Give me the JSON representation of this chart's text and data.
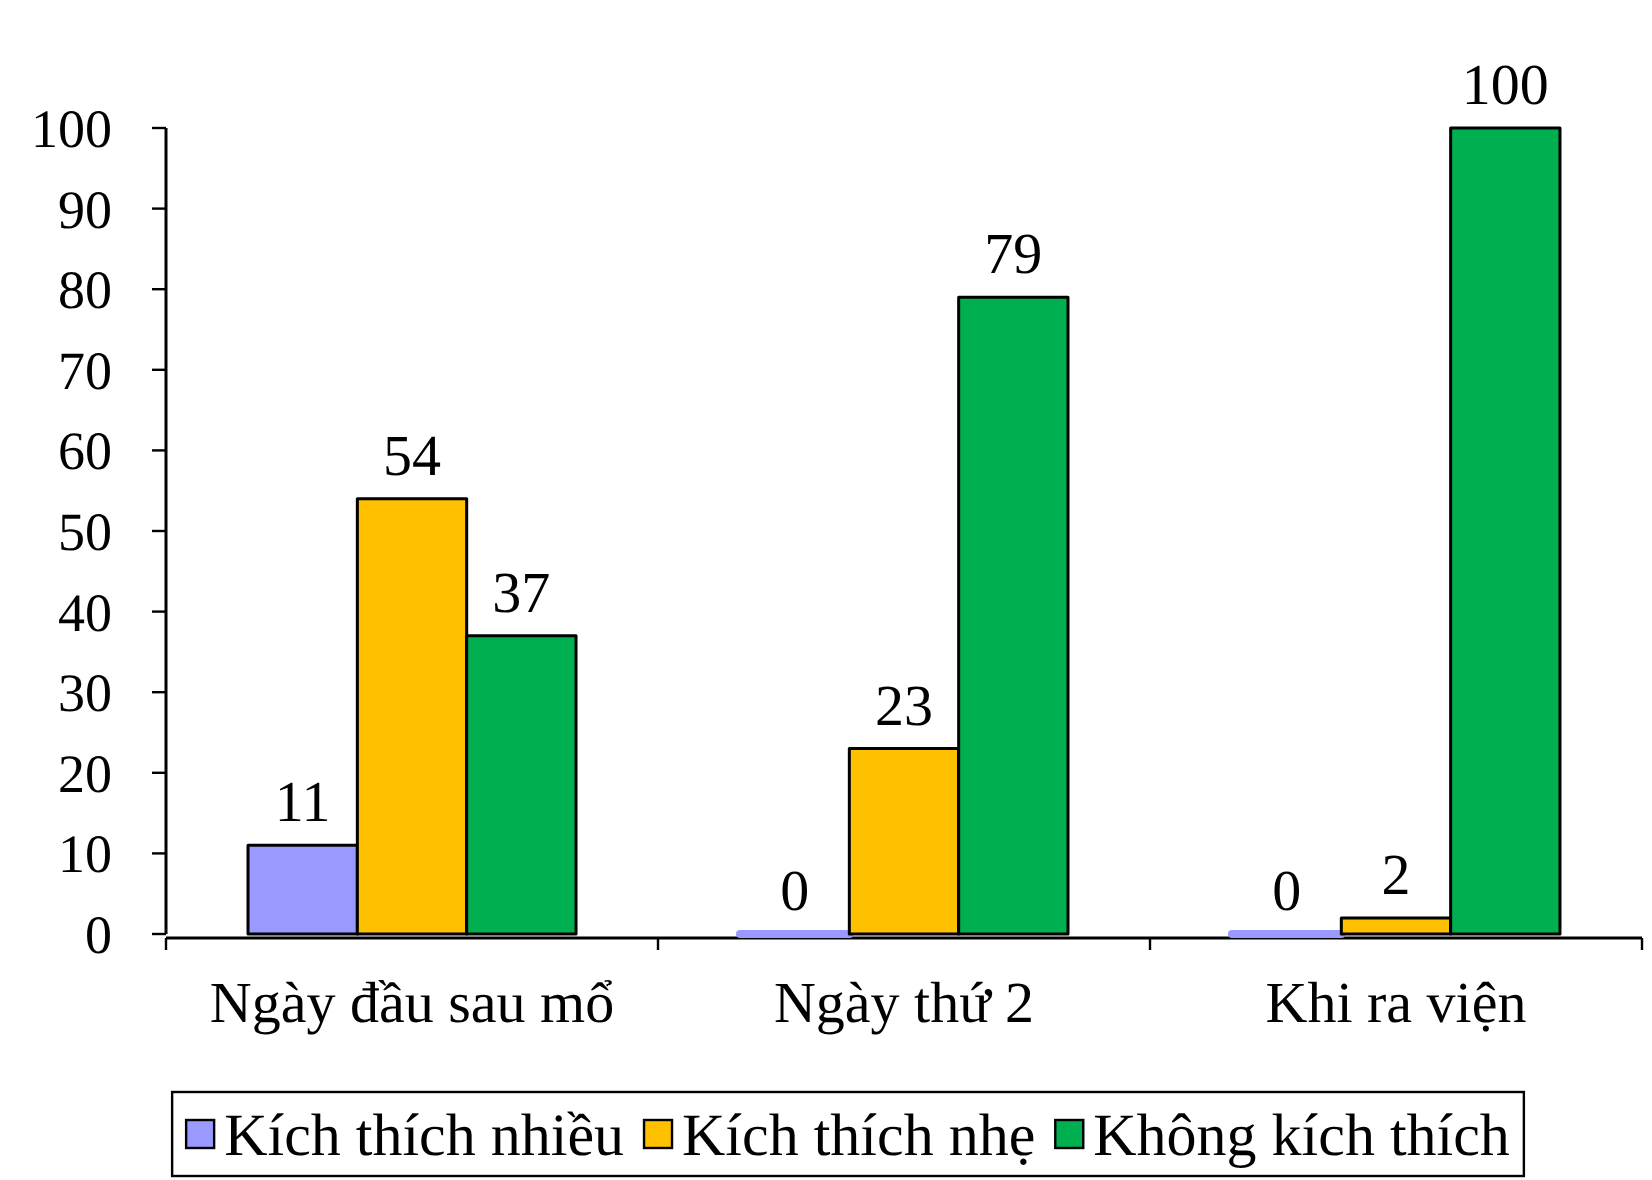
{
  "chart_data": {
    "type": "bar",
    "categories": [
      "Ngày đầu sau mổ",
      "Ngày thứ 2",
      "Khi ra viện"
    ],
    "series": [
      {
        "name": "Kích thích nhiều",
        "color": "#9999ff",
        "values": [
          11,
          0,
          0
        ]
      },
      {
        "name": "Kích thích nhẹ",
        "color": "#ffc000",
        "values": [
          54,
          23,
          2
        ]
      },
      {
        "name": "Không kích thích",
        "color": "#00b050",
        "values": [
          37,
          79,
          100
        ]
      }
    ],
    "ylim": [
      0,
      100
    ],
    "yticks": [
      0,
      10,
      20,
      30,
      40,
      50,
      60,
      70,
      80,
      90,
      100
    ],
    "legend": "bottom",
    "data_labels": true
  }
}
